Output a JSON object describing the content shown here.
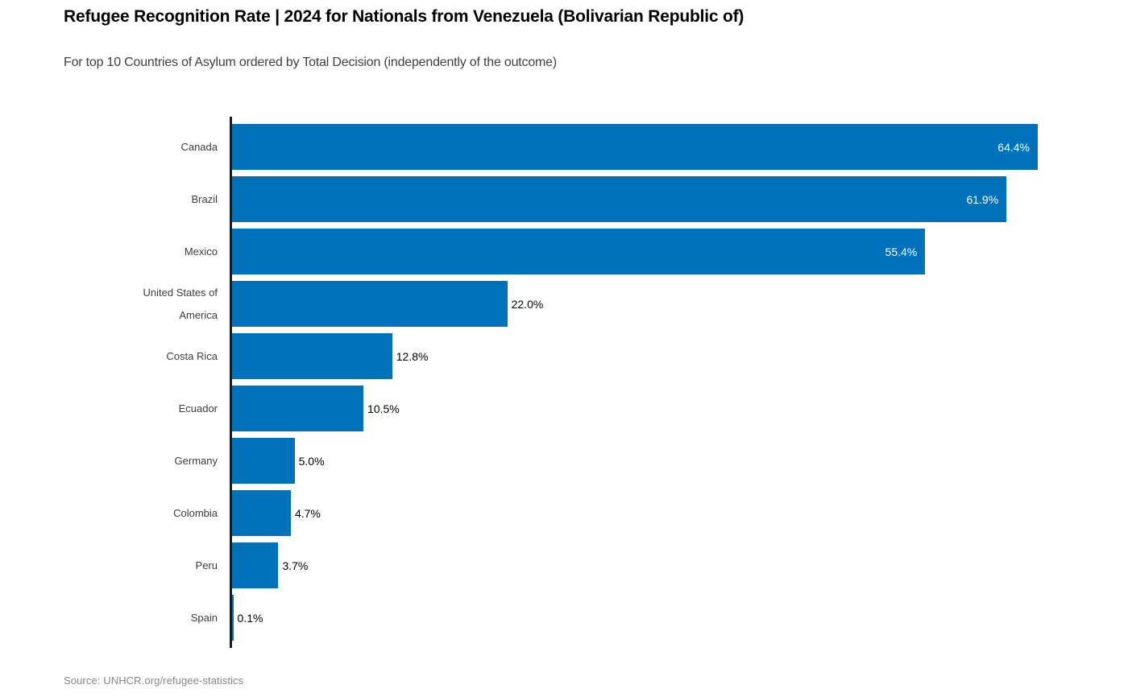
{
  "header": {
    "title": "Refugee Recognition Rate | 2024 for Nationals from Venezuela (Bolivarian Republic of)",
    "subtitle": "For top 10 Countries of Asylum ordered by Total Decision (independently of the outcome)"
  },
  "chart_data": {
    "type": "bar",
    "orientation": "horizontal",
    "title": "Refugee Recognition Rate | 2024 for Nationals from Venezuela (Bolivarian Republic of)",
    "subtitle": "For top 10 Countries of Asylum ordered by Total Decision (independently of the outcome)",
    "categories": [
      "Canada",
      "Brazil",
      "Mexico",
      "United States of America",
      "Costa Rica",
      "Ecuador",
      "Germany",
      "Colombia",
      "Peru",
      "Spain"
    ],
    "values": [
      64.4,
      61.9,
      55.4,
      22.0,
      12.8,
      10.5,
      5.0,
      4.7,
      3.7,
      0.1
    ],
    "value_labels": [
      "64.4%",
      "61.9%",
      "55.4%",
      "22.0%",
      "12.8%",
      "10.5%",
      "5.0%",
      "4.7%",
      "3.7%",
      "0.1%"
    ],
    "xlabel": "",
    "ylabel": "",
    "xlim": [
      0,
      64.4
    ],
    "grid": false,
    "legend": false,
    "bar_color": "#0072bc",
    "axis_line_color": "#1a1a1a",
    "inside_label_color": "#ffffff",
    "outside_label_color": "#000000",
    "label_inside_threshold": 30
  },
  "footer": {
    "source": "Source: UNHCR.org/refugee-statistics"
  }
}
